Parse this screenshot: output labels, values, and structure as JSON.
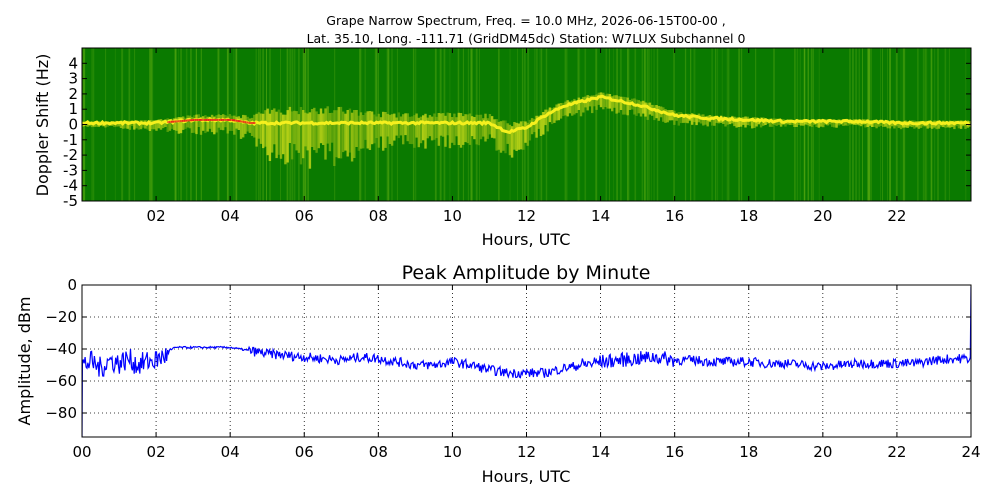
{
  "chart_data": [
    {
      "type": "heatmap",
      "title_line1": "Grape Narrow Spectrum, Freq. = 10.0 MHz, 2026-06-15T00-00 ,",
      "title_line2": "Lat.  35.10, Long. -111.71 (GridDM45dc) Station: W7LUX Subchannel 0",
      "xlabel": "Hours, UTC",
      "ylabel": "Doppler Shift (Hz)",
      "xlim": [
        0,
        24
      ],
      "ylim": [
        -5,
        5
      ],
      "x_ticks": [
        2,
        4,
        6,
        8,
        10,
        12,
        14,
        16,
        18,
        20,
        22
      ],
      "x_tick_labels": [
        "02",
        "04",
        "06",
        "08",
        "10",
        "12",
        "14",
        "16",
        "18",
        "20",
        "22"
      ],
      "y_ticks": [
        4,
        3,
        2,
        1,
        0,
        -1,
        -2,
        -3,
        -4,
        -5
      ],
      "y_tick_labels": [
        "4",
        "3",
        "2",
        "1",
        "0",
        "-1",
        "-2",
        "-3",
        "-4",
        "-5"
      ],
      "colors": {
        "background": "#0a7a00",
        "mid": "#8fcc1a",
        "high": "#f5f01e",
        "peak": "#e8201a"
      },
      "ridge": {
        "hours": [
          0,
          1,
          2,
          2.5,
          3,
          4,
          4.5,
          5,
          6,
          7,
          8,
          9,
          10,
          11,
          11.5,
          12,
          12.5,
          13,
          13.5,
          14,
          15,
          16,
          17,
          18,
          19,
          20,
          21,
          22,
          23,
          24
        ],
        "doppler_hz": [
          0.1,
          0.1,
          0.1,
          0.2,
          0.3,
          0.3,
          0.1,
          0.1,
          0.1,
          0.1,
          0.1,
          0.1,
          0.1,
          0.1,
          -0.5,
          -0.2,
          0.6,
          1.2,
          1.5,
          1.8,
          1.3,
          0.6,
          0.4,
          0.3,
          0.2,
          0.2,
          0.2,
          0.1,
          0.1,
          0.1
        ],
        "spread_hz": [
          0.2,
          0.3,
          0.4,
          0.6,
          0.7,
          0.7,
          1.0,
          1.8,
          2.2,
          2.0,
          1.4,
          1.2,
          1.3,
          1.1,
          1.3,
          1.0,
          0.8,
          0.7,
          0.7,
          0.6,
          0.7,
          0.5,
          0.4,
          0.4,
          0.3,
          0.3,
          0.3,
          0.3,
          0.3,
          0.3
        ]
      }
    },
    {
      "type": "line",
      "title": "Peak Amplitude by Minute",
      "xlabel": "Hours, UTC",
      "ylabel": "Amplitude, dBm",
      "xlim": [
        0,
        24
      ],
      "ylim": [
        -95,
        0
      ],
      "x_ticks": [
        0,
        2,
        4,
        6,
        8,
        10,
        12,
        14,
        16,
        18,
        20,
        22,
        24
      ],
      "x_tick_labels": [
        "00",
        "02",
        "04",
        "06",
        "08",
        "10",
        "12",
        "14",
        "16",
        "18",
        "20",
        "22",
        "24"
      ],
      "y_ticks": [
        0,
        -20,
        -40,
        -60,
        -80
      ],
      "y_tick_labels": [
        "0",
        "−20",
        "−40",
        "−60",
        "−80"
      ],
      "grid": true,
      "line_color": "#0000ff",
      "series": [
        {
          "x": [
            0,
            0.25,
            0.5,
            0.75,
            1,
            1.25,
            1.5,
            1.75,
            2,
            2.25,
            2.5,
            3,
            3.5,
            4,
            4.5,
            5,
            5.5,
            6,
            6.5,
            7,
            7.5,
            8,
            8.5,
            9,
            9.5,
            10,
            10.5,
            11,
            11.5,
            12,
            12.5,
            13,
            13.5,
            14,
            14.5,
            15,
            15.5,
            16,
            16.5,
            17,
            17.5,
            18,
            18.5,
            19,
            19.5,
            20,
            20.5,
            21,
            21.5,
            22,
            22.5,
            23,
            23.5,
            24
          ],
          "y": [
            -50,
            -48,
            -52,
            -47,
            -49,
            -46,
            -50,
            -48,
            -47,
            -44,
            -39,
            -39,
            -39,
            -39,
            -41,
            -43,
            -44,
            -45,
            -46,
            -47,
            -45,
            -46,
            -48,
            -50,
            -50,
            -48,
            -50,
            -53,
            -55,
            -55,
            -55,
            -52,
            -50,
            -48,
            -47,
            -46,
            -45,
            -47,
            -47,
            -48,
            -48,
            -48,
            -49,
            -49,
            -50,
            -51,
            -50,
            -49,
            -49,
            -49,
            -49,
            -47,
            -46,
            -46
          ]
        }
      ]
    }
  ]
}
